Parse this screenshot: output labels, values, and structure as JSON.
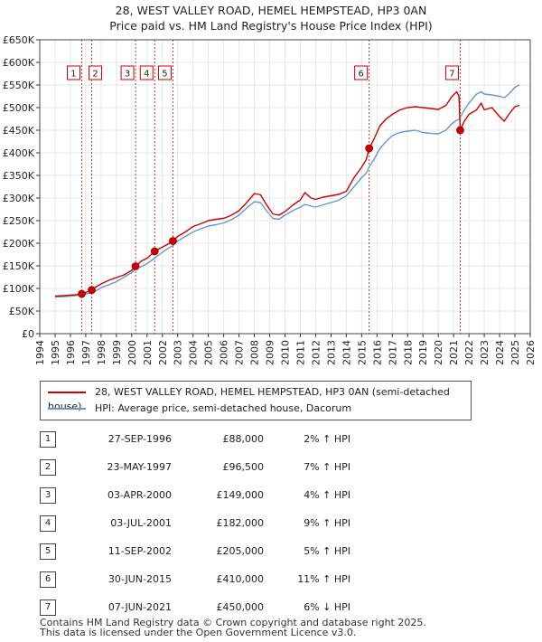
{
  "title_line1": "28, WEST VALLEY ROAD, HEMEL HEMPSTEAD, HP3 0AN",
  "title_line2": "Price paid vs. HM Land Registry's House Price Index (HPI)",
  "colors": {
    "property": "#cc0000",
    "hpi": "#6699cc",
    "marker": "#cc0000",
    "grid": "#e6e6e6"
  },
  "legend": {
    "property": "28, WEST VALLEY ROAD, HEMEL HEMPSTEAD, HP3 0AN (semi-detached house)",
    "hpi": "HPI: Average price, semi-detached house, Dacorum"
  },
  "sales_table": [
    {
      "num": "1",
      "date": "27-SEP-1996",
      "price": "£88,000",
      "hpi": "2% ↑ HPI"
    },
    {
      "num": "2",
      "date": "23-MAY-1997",
      "price": "£96,500",
      "hpi": "7% ↑ HPI"
    },
    {
      "num": "3",
      "date": "03-APR-2000",
      "price": "£149,000",
      "hpi": "4% ↑ HPI"
    },
    {
      "num": "4",
      "date": "03-JUL-2001",
      "price": "£182,000",
      "hpi": "9% ↑ HPI"
    },
    {
      "num": "5",
      "date": "11-SEP-2002",
      "price": "£205,000",
      "hpi": "5% ↑ HPI"
    },
    {
      "num": "6",
      "date": "30-JUN-2015",
      "price": "£410,000",
      "hpi": "11% ↑ HPI"
    },
    {
      "num": "7",
      "date": "07-JUN-2021",
      "price": "£450,000",
      "hpi": "6% ↓ HPI"
    }
  ],
  "footer_line1": "Contains HM Land Registry data © Crown copyright and database right 2025.",
  "footer_line2": "This data is licensed under the Open Government Licence v3.0.",
  "chart_data": {
    "type": "line",
    "title": "",
    "xlabel": "",
    "ylabel": "",
    "xlim": [
      1994,
      2026
    ],
    "ylim": [
      0,
      650000
    ],
    "x_ticks": [
      1994,
      1995,
      1996,
      1997,
      1998,
      1999,
      2000,
      2001,
      2002,
      2003,
      2004,
      2005,
      2006,
      2007,
      2008,
      2009,
      2010,
      2011,
      2012,
      2013,
      2014,
      2015,
      2016,
      2017,
      2018,
      2019,
      2020,
      2021,
      2022,
      2023,
      2024,
      2025,
      2026
    ],
    "y_ticks": [
      {
        "value": 0,
        "label": "£0"
      },
      {
        "value": 50000,
        "label": "£50K"
      },
      {
        "value": 100000,
        "label": "£100K"
      },
      {
        "value": 150000,
        "label": "£150K"
      },
      {
        "value": 200000,
        "label": "£200K"
      },
      {
        "value": 250000,
        "label": "£250K"
      },
      {
        "value": 300000,
        "label": "£300K"
      },
      {
        "value": 350000,
        "label": "£350K"
      },
      {
        "value": 400000,
        "label": "£400K"
      },
      {
        "value": 450000,
        "label": "£450K"
      },
      {
        "value": 500000,
        "label": "£500K"
      },
      {
        "value": 550000,
        "label": "£550K"
      },
      {
        "value": 600000,
        "label": "£600K"
      },
      {
        "value": 650000,
        "label": "£650K"
      }
    ],
    "grid": true,
    "legend_position": "below",
    "series": [
      {
        "name": "28, WEST VALLEY ROAD, HEMEL HEMPSTEAD, HP3 0AN (semi-detached house)",
        "color": "#cc0000",
        "points": [
          [
            1995.0,
            83000
          ],
          [
            1995.5,
            84000
          ],
          [
            1996.0,
            85500
          ],
          [
            1996.5,
            86500
          ],
          [
            1996.74,
            88000
          ],
          [
            1997.0,
            91000
          ],
          [
            1997.39,
            96500
          ],
          [
            1997.7,
            104000
          ],
          [
            1998.0,
            110000
          ],
          [
            1998.5,
            118000
          ],
          [
            1999.0,
            124000
          ],
          [
            1999.5,
            130000
          ],
          [
            2000.0,
            140000
          ],
          [
            2000.25,
            149000
          ],
          [
            2000.6,
            160000
          ],
          [
            2001.0,
            167000
          ],
          [
            2001.5,
            182000
          ],
          [
            2001.8,
            188000
          ],
          [
            2002.2,
            195000
          ],
          [
            2002.69,
            205000
          ],
          [
            2003.0,
            215000
          ],
          [
            2003.5,
            225000
          ],
          [
            2004.0,
            237000
          ],
          [
            2004.5,
            243000
          ],
          [
            2005.0,
            250000
          ],
          [
            2005.5,
            253000
          ],
          [
            2006.0,
            255000
          ],
          [
            2006.5,
            262000
          ],
          [
            2007.0,
            272000
          ],
          [
            2007.5,
            290000
          ],
          [
            2008.0,
            310000
          ],
          [
            2008.4,
            307000
          ],
          [
            2008.8,
            285000
          ],
          [
            2009.2,
            265000
          ],
          [
            2009.6,
            262000
          ],
          [
            2010.0,
            270000
          ],
          [
            2010.5,
            284000
          ],
          [
            2011.0,
            296000
          ],
          [
            2011.3,
            312000
          ],
          [
            2011.7,
            300000
          ],
          [
            2012.0,
            297000
          ],
          [
            2012.5,
            302000
          ],
          [
            2013.0,
            305000
          ],
          [
            2013.5,
            308000
          ],
          [
            2014.0,
            315000
          ],
          [
            2014.5,
            345000
          ],
          [
            2015.0,
            368000
          ],
          [
            2015.3,
            385000
          ],
          [
            2015.5,
            410000
          ],
          [
            2015.8,
            430000
          ],
          [
            2016.2,
            460000
          ],
          [
            2016.6,
            475000
          ],
          [
            2017.0,
            485000
          ],
          [
            2017.5,
            495000
          ],
          [
            2018.0,
            500000
          ],
          [
            2018.5,
            502000
          ],
          [
            2019.0,
            500000
          ],
          [
            2019.5,
            498000
          ],
          [
            2020.0,
            496000
          ],
          [
            2020.5,
            505000
          ],
          [
            2020.9,
            525000
          ],
          [
            2021.2,
            535000
          ],
          [
            2021.35,
            525000
          ],
          [
            2021.43,
            450000
          ],
          [
            2021.7,
            470000
          ],
          [
            2022.0,
            485000
          ],
          [
            2022.5,
            495000
          ],
          [
            2022.8,
            510000
          ],
          [
            2023.0,
            495000
          ],
          [
            2023.5,
            500000
          ],
          [
            2024.0,
            480000
          ],
          [
            2024.3,
            470000
          ],
          [
            2024.6,
            485000
          ],
          [
            2025.0,
            502000
          ],
          [
            2025.3,
            505000
          ]
        ]
      },
      {
        "name": "HPI: Average price, semi-detached house, Dacorum",
        "color": "#6699cc",
        "points": [
          [
            1995.0,
            81000
          ],
          [
            1995.5,
            82000
          ],
          [
            1996.0,
            83000
          ],
          [
            1996.5,
            85000
          ],
          [
            1996.74,
            86300
          ],
          [
            1997.0,
            88000
          ],
          [
            1997.39,
            90200
          ],
          [
            1997.7,
            95000
          ],
          [
            1998.0,
            102000
          ],
          [
            1998.5,
            108000
          ],
          [
            1999.0,
            115000
          ],
          [
            1999.5,
            125000
          ],
          [
            2000.0,
            135000
          ],
          [
            2000.25,
            143000
          ],
          [
            2000.6,
            148000
          ],
          [
            2001.0,
            155000
          ],
          [
            2001.5,
            167000
          ],
          [
            2001.8,
            175000
          ],
          [
            2002.2,
            185000
          ],
          [
            2002.69,
            195000
          ],
          [
            2003.0,
            205000
          ],
          [
            2003.5,
            215000
          ],
          [
            2004.0,
            225000
          ],
          [
            2004.5,
            232000
          ],
          [
            2005.0,
            238000
          ],
          [
            2005.5,
            241000
          ],
          [
            2006.0,
            245000
          ],
          [
            2006.5,
            252000
          ],
          [
            2007.0,
            262000
          ],
          [
            2007.5,
            278000
          ],
          [
            2008.0,
            292000
          ],
          [
            2008.4,
            290000
          ],
          [
            2008.8,
            272000
          ],
          [
            2009.2,
            255000
          ],
          [
            2009.6,
            253000
          ],
          [
            2010.0,
            262000
          ],
          [
            2010.5,
            272000
          ],
          [
            2011.0,
            280000
          ],
          [
            2011.3,
            286000
          ],
          [
            2011.7,
            282000
          ],
          [
            2012.0,
            280000
          ],
          [
            2012.5,
            285000
          ],
          [
            2013.0,
            290000
          ],
          [
            2013.5,
            295000
          ],
          [
            2014.0,
            305000
          ],
          [
            2014.5,
            325000
          ],
          [
            2015.0,
            345000
          ],
          [
            2015.3,
            355000
          ],
          [
            2015.5,
            369000
          ],
          [
            2015.8,
            385000
          ],
          [
            2016.2,
            410000
          ],
          [
            2016.6,
            425000
          ],
          [
            2017.0,
            438000
          ],
          [
            2017.5,
            445000
          ],
          [
            2018.0,
            448000
          ],
          [
            2018.5,
            450000
          ],
          [
            2019.0,
            445000
          ],
          [
            2019.5,
            443000
          ],
          [
            2020.0,
            442000
          ],
          [
            2020.5,
            450000
          ],
          [
            2020.9,
            465000
          ],
          [
            2021.2,
            472000
          ],
          [
            2021.35,
            474000
          ],
          [
            2021.43,
            479000
          ],
          [
            2021.7,
            495000
          ],
          [
            2022.0,
            510000
          ],
          [
            2022.5,
            530000
          ],
          [
            2022.8,
            535000
          ],
          [
            2023.0,
            530000
          ],
          [
            2023.5,
            528000
          ],
          [
            2024.0,
            525000
          ],
          [
            2024.3,
            522000
          ],
          [
            2024.6,
            530000
          ],
          [
            2025.0,
            545000
          ],
          [
            2025.3,
            550000
          ]
        ]
      }
    ],
    "sales": [
      {
        "label": "1",
        "x": 1996.74,
        "y": 88000
      },
      {
        "label": "2",
        "x": 1997.39,
        "y": 96500
      },
      {
        "label": "3",
        "x": 2000.25,
        "y": 149000
      },
      {
        "label": "4",
        "x": 2001.5,
        "y": 182000
      },
      {
        "label": "5",
        "x": 2002.69,
        "y": 205000
      },
      {
        "label": "6",
        "x": 2015.49,
        "y": 410000
      },
      {
        "label": "7",
        "x": 2021.43,
        "y": 450000
      }
    ]
  }
}
